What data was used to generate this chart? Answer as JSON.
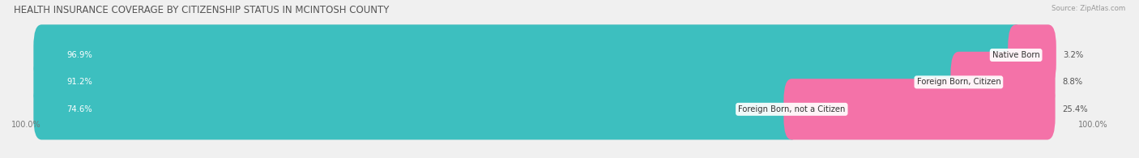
{
  "title": "HEALTH INSURANCE COVERAGE BY CITIZENSHIP STATUS IN MCINTOSH COUNTY",
  "source": "Source: ZipAtlas.com",
  "categories": [
    "Native Born",
    "Foreign Born, Citizen",
    "Foreign Born, not a Citizen"
  ],
  "with_coverage": [
    96.9,
    91.2,
    74.6
  ],
  "without_coverage": [
    3.2,
    8.8,
    25.4
  ],
  "color_with": "#3dbfbf",
  "color_without": "#f472a8",
  "bg_color": "#f0f0f0",
  "bar_bg": "#e4e4e4",
  "title_fontsize": 8.5,
  "label_fontsize": 7.2,
  "tick_fontsize": 7,
  "legend_fontsize": 7.5,
  "x_left_label": "100.0%",
  "x_right_label": "100.0%"
}
